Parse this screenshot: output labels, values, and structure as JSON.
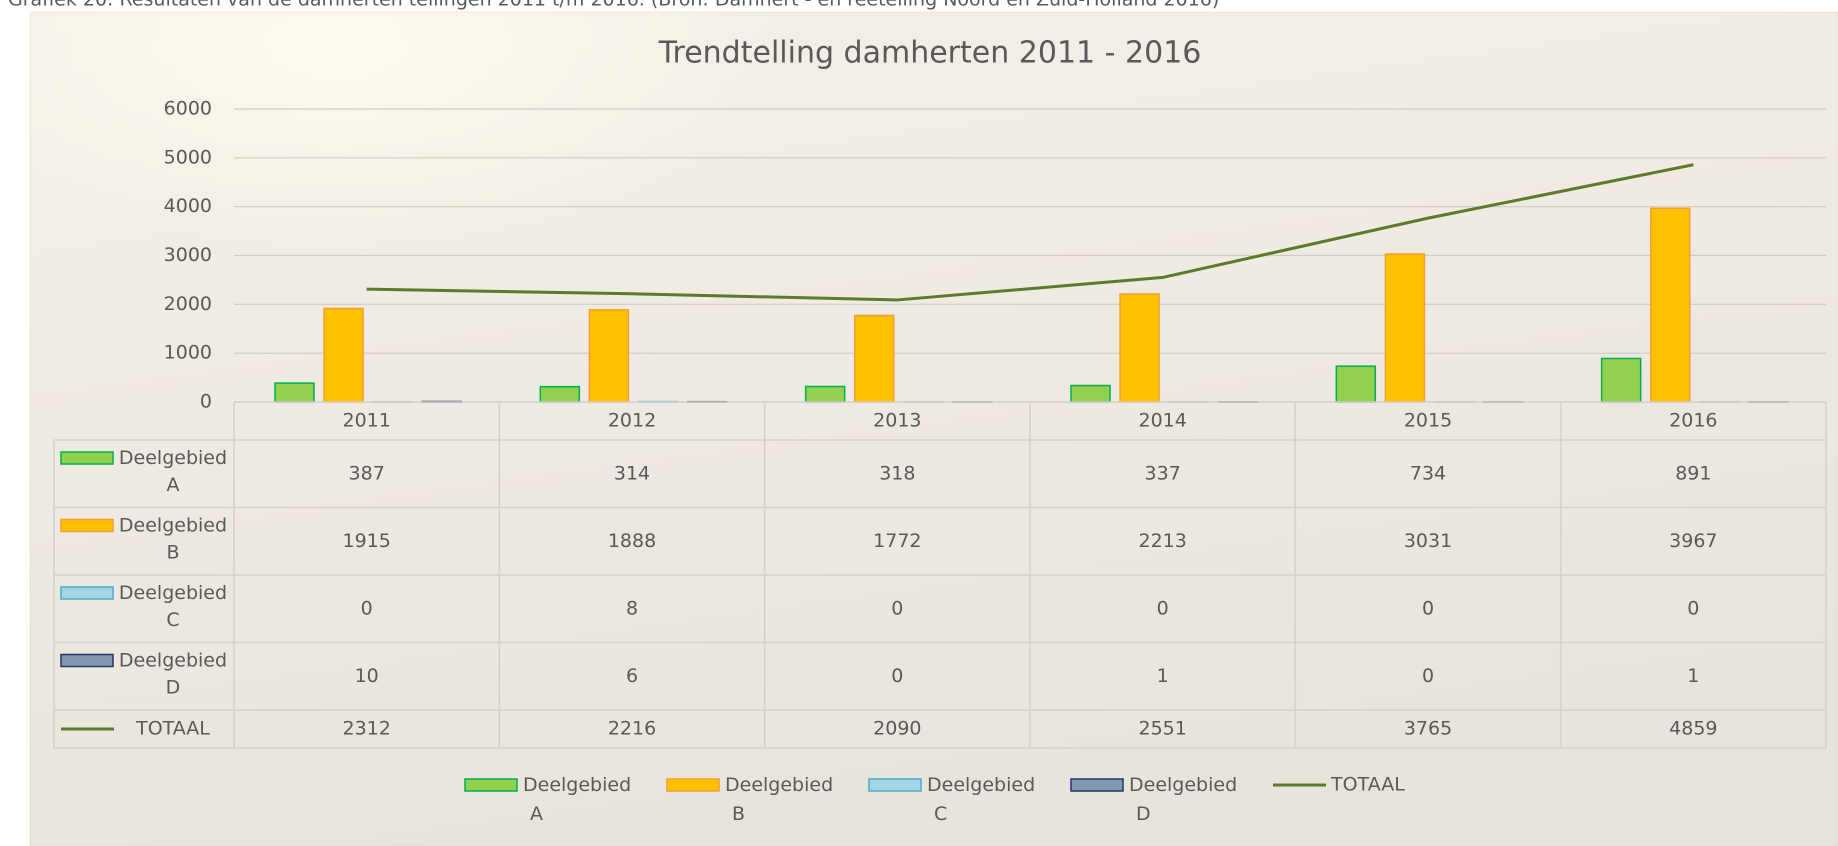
{
  "caption": "Grafiek 20: Resultaten van de damherten tellingen 2011 t/m 2016. (Bron: Damhert - en reetelling Noord en Zuid-Holland 2016)",
  "chart_data": {
    "type": "bar",
    "title": "Trendtelling damherten 2011 - 2016",
    "categories": [
      "2011",
      "2012",
      "2013",
      "2014",
      "2015",
      "2016"
    ],
    "series": [
      {
        "name": "Deelgebied A",
        "color": "#92d050",
        "edge_color": "#00b050",
        "values": [
          387,
          314,
          318,
          337,
          734,
          891
        ]
      },
      {
        "name": "Deelgebied B",
        "color": "#ffc000",
        "edge_color": "#f0a030",
        "values": [
          1915,
          1888,
          1772,
          2213,
          3031,
          3967
        ]
      },
      {
        "name": "Deelgebied C",
        "color": "#a6d4e4",
        "edge_color": "#4bacc6",
        "values": [
          0,
          8,
          0,
          0,
          0,
          0
        ]
      },
      {
        "name": "Deelgebied D",
        "color": "#8497b0",
        "edge_color": "#1f3864",
        "values": [
          10,
          6,
          0,
          1,
          0,
          1
        ]
      },
      {
        "name": "TOTAAL",
        "type": "line",
        "color": "#5b7a2a",
        "values": [
          2312,
          2216,
          2090,
          2551,
          3765,
          4859
        ]
      }
    ],
    "ylim": [
      0,
      6000
    ],
    "yticks": [
      0,
      1000,
      2000,
      3000,
      4000,
      5000,
      6000
    ],
    "grid": true,
    "data_table": true
  }
}
